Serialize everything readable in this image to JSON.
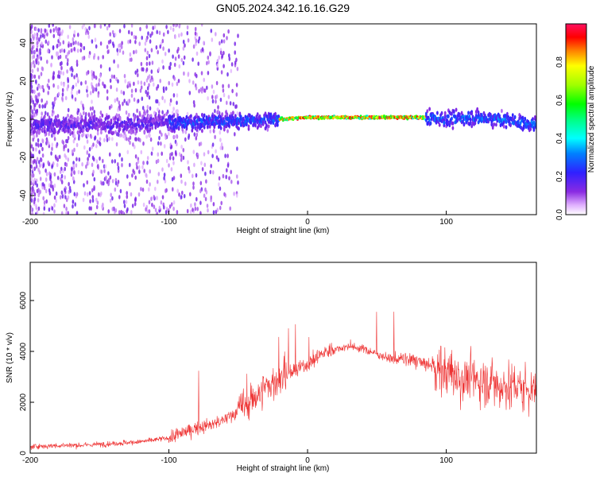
{
  "title": "GN05.2024.342.16.16.G29",
  "chart_data": [
    {
      "type": "heatmap",
      "xlabel": "Height of straight line (km)",
      "ylabel": "Frequency (Hz)",
      "xlim": [
        -200,
        165
      ],
      "ylim": [
        -50,
        50
      ],
      "xticks": [
        -200,
        -100,
        0,
        100
      ],
      "yticks": [
        -40,
        -20,
        0,
        20,
        40
      ],
      "colorbar": {
        "label": "Normalized spectral amplitude",
        "ticks": [
          0.0,
          0.2,
          0.4,
          0.6,
          0.8
        ],
        "range": [
          0,
          1
        ]
      },
      "ridge": {
        "x": [
          -200,
          -150,
          -100,
          -50,
          -20,
          0,
          50,
          80,
          100,
          120,
          140,
          165
        ],
        "freq": [
          -3,
          -3,
          -2,
          -1,
          0,
          1,
          1,
          1,
          0,
          1,
          0,
          -3
        ]
      }
    },
    {
      "type": "line",
      "xlabel": "Height of straight line (km)",
      "ylabel": "SNR (10 * v/v)",
      "xlim": [
        -200,
        165
      ],
      "ylim": [
        0,
        7500
      ],
      "xticks": [
        -200,
        -100,
        0,
        100
      ],
      "yticks": [
        0,
        2000,
        4000,
        6000
      ],
      "color": "#ee3333",
      "series": [
        {
          "x": [
            -200,
            -180,
            -160,
            -140,
            -120,
            -100,
            -90,
            -80,
            -70,
            -60,
            -50,
            -40,
            -30,
            -20,
            -15,
            -10,
            0,
            10,
            20,
            30,
            40,
            50,
            60,
            70,
            80,
            90,
            100,
            110,
            120,
            130,
            140,
            150,
            165
          ],
          "values": [
            250,
            300,
            320,
            380,
            450,
            600,
            800,
            1000,
            1100,
            1300,
            1700,
            2100,
            2600,
            2900,
            3100,
            3200,
            3500,
            3900,
            4100,
            4200,
            4100,
            3900,
            3700,
            3700,
            3600,
            3400,
            3200,
            3000,
            2900,
            2800,
            2700,
            2600,
            2500
          ]
        }
      ]
    }
  ]
}
